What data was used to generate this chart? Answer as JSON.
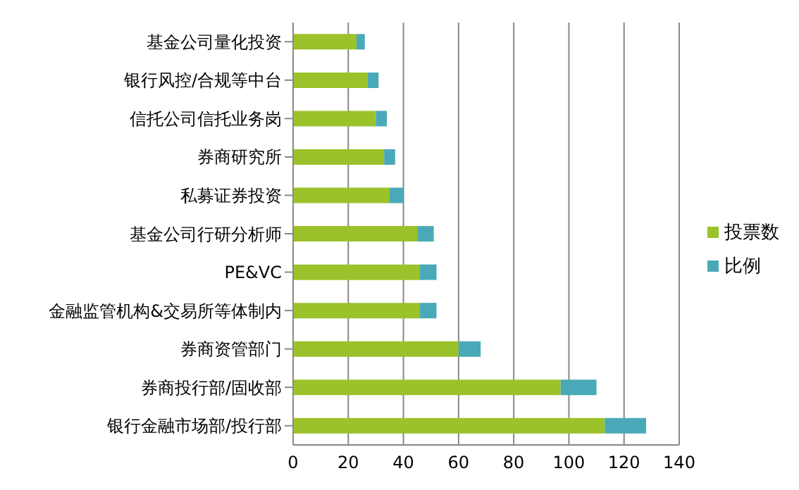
{
  "chart_data": {
    "type": "bar",
    "orientation": "horizontal",
    "stacked": true,
    "categories": [
      "基金公司量化投资",
      "银行风控/合规等中台",
      "信托公司信托业务岗",
      "券商研究所",
      "私募证券投资",
      "基金公司行研分析师",
      "PE&VC",
      "金融监管机构&交易所等体制内",
      "券商资管部门",
      "券商投行部/固收部",
      "银行金融市场部/投行部"
    ],
    "series": [
      {
        "name": "投票数",
        "color": "#9bc22a",
        "values": [
          23,
          27,
          30,
          33,
          35,
          45,
          46,
          46,
          60,
          97,
          113
        ]
      },
      {
        "name": "比例",
        "color": "#4aa9b8",
        "values": [
          3,
          4,
          4,
          4,
          5,
          6,
          6,
          6,
          8,
          13,
          15
        ]
      }
    ],
    "xlim": [
      0,
      140
    ],
    "xticks": [
      0,
      20,
      40,
      60,
      80,
      100,
      120,
      140
    ],
    "grid": "x",
    "legend": "right"
  }
}
